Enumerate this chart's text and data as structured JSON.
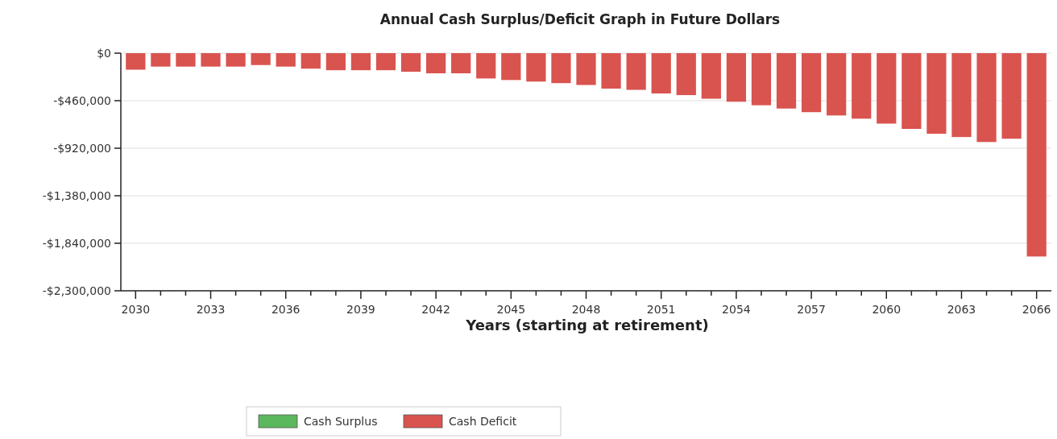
{
  "chart_data": {
    "type": "bar",
    "title": "Annual Cash Surplus/Deficit Graph in Future Dollars",
    "xlabel": "Years (starting at retirement)",
    "categories": [
      "2030",
      null,
      null,
      "2033",
      null,
      null,
      "2036",
      null,
      null,
      "2039",
      null,
      null,
      "2042",
      null,
      null,
      "2045",
      null,
      null,
      "2048",
      null,
      null,
      "2051",
      null,
      null,
      "2054",
      null,
      null,
      "2057",
      null,
      null,
      "2060",
      null,
      null,
      "2063",
      null,
      null,
      "2066"
    ],
    "series": [
      {
        "name": "Cash Surplus",
        "color": "#5cb85c",
        "values": [
          null,
          null,
          null,
          null,
          null,
          null,
          null,
          null,
          null,
          null,
          null,
          null,
          null,
          null,
          null,
          null,
          null,
          null,
          null,
          null,
          null,
          null,
          null,
          null,
          null,
          null,
          null,
          null,
          null,
          null,
          null,
          null,
          null,
          null,
          null,
          null,
          null
        ]
      },
      {
        "name": "Cash Deficit",
        "color": "#d9534f",
        "values": [
          -160000,
          -130000,
          -130000,
          -130000,
          -130000,
          -115000,
          -130000,
          -150000,
          -165000,
          -165000,
          -165000,
          -180000,
          -195000,
          -195000,
          -245000,
          -260000,
          -275000,
          -290000,
          -308000,
          -343000,
          -355000,
          -390000,
          -406000,
          -441000,
          -470000,
          -504000,
          -536000,
          -571000,
          -603000,
          -634000,
          -682000,
          -733000,
          -780000,
          -812000,
          -860000,
          -828000,
          -1968000
        ]
      }
    ],
    "stacked": true,
    "ylim": [
      -2300000,
      0
    ],
    "yticks": [
      {
        "value": -2300000,
        "label": "-$2,300,000"
      },
      {
        "value": -1840000,
        "label": "-$1,840,000"
      },
      {
        "value": -1380000,
        "label": "-$1,380,000"
      },
      {
        "value": -920000,
        "label": "-$920,000"
      },
      {
        "value": -460000,
        "label": "-$460,000"
      },
      {
        "value": 0,
        "label": "$0"
      }
    ],
    "grid": "y",
    "legend": "bottom"
  }
}
